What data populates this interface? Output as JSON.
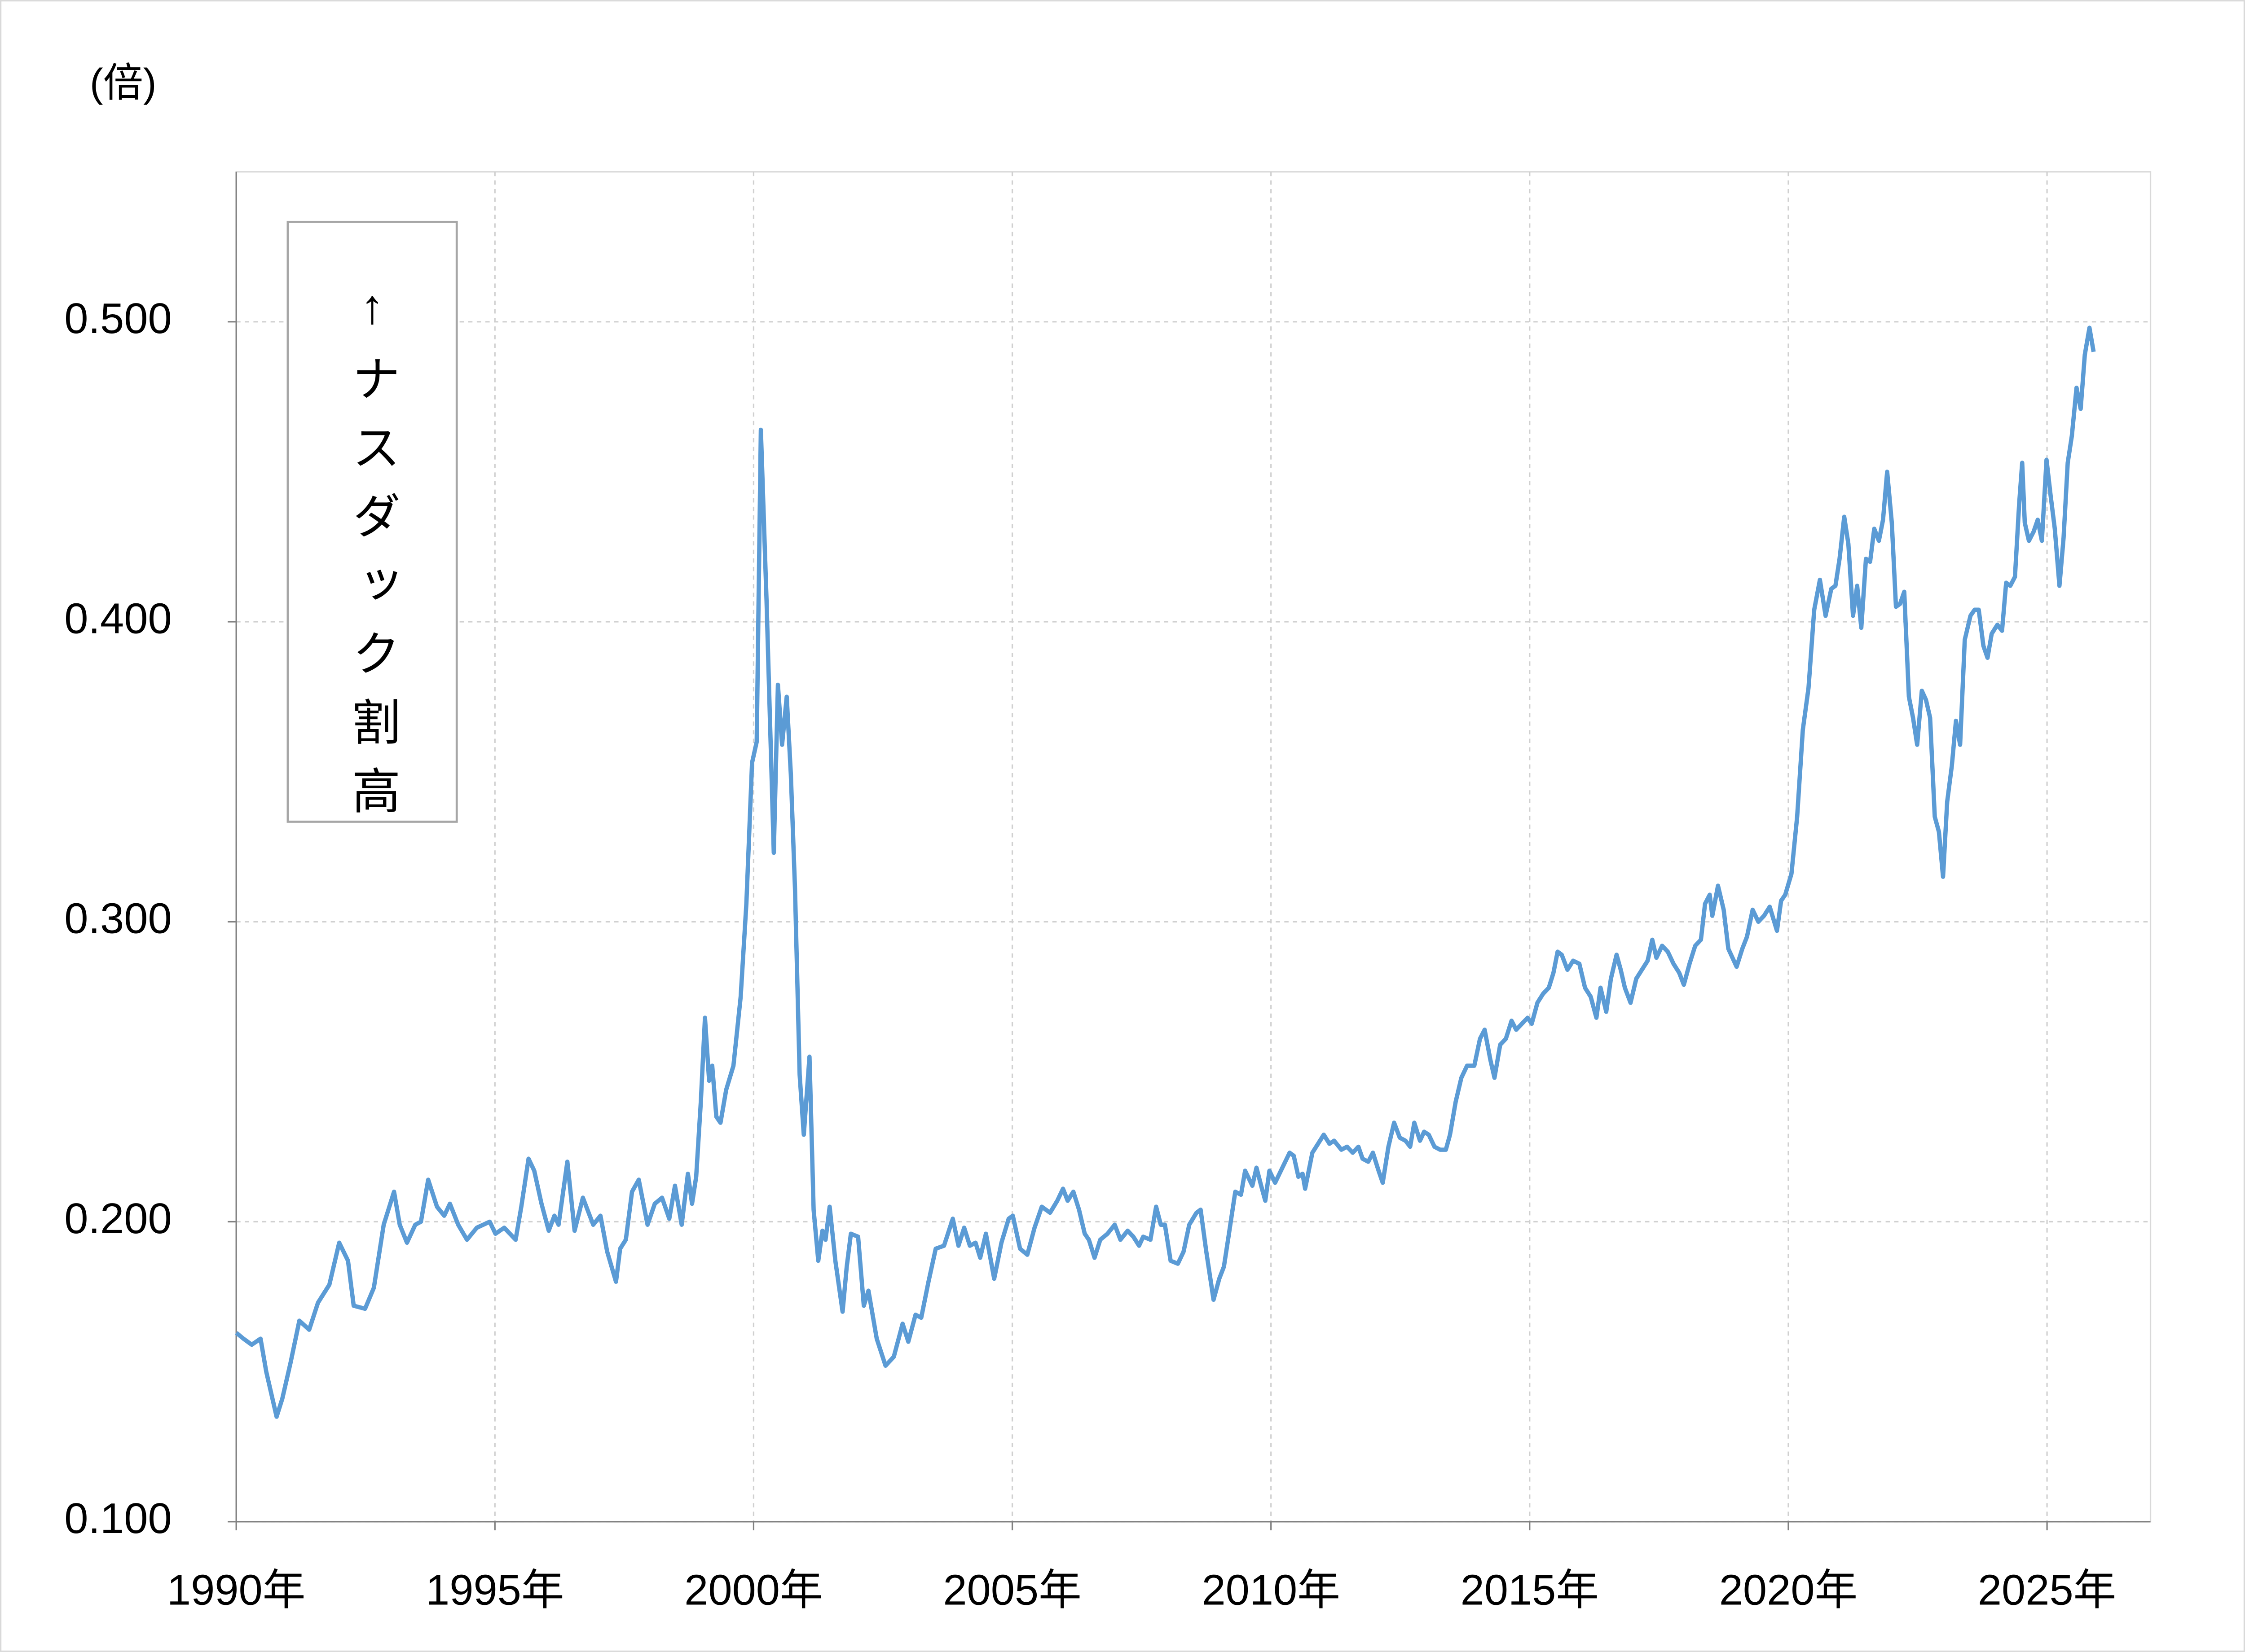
{
  "chart_data": {
    "type": "line",
    "y_axis_label": "(倍)",
    "annotation": "↑ナスダック割高",
    "x": [
      1990.0,
      1990.14,
      1990.3,
      1990.47,
      1990.58,
      1990.78,
      1990.89,
      1991.05,
      1991.22,
      1991.41,
      1991.58,
      1991.8,
      1991.99,
      1992.16,
      1992.27,
      1992.49,
      1992.66,
      1992.85,
      1993.05,
      1993.16,
      1993.3,
      1993.46,
      1993.57,
      1993.71,
      1993.88,
      1994.02,
      1994.13,
      1994.29,
      1994.46,
      1994.65,
      1994.9,
      1995.01,
      1995.18,
      1995.4,
      1995.51,
      1995.65,
      1995.76,
      1995.9,
      1996.04,
      1996.15,
      1996.23,
      1996.4,
      1996.54,
      1996.7,
      1996.9,
      1997.04,
      1997.17,
      1997.34,
      1997.42,
      1997.53,
      1997.65,
      1997.78,
      1997.95,
      1998.09,
      1998.23,
      1998.37,
      1998.48,
      1998.61,
      1998.73,
      1998.81,
      1998.89,
      1998.98,
      1999.06,
      1999.14,
      1999.2,
      1999.28,
      1999.36,
      1999.47,
      1999.61,
      1999.75,
      1999.86,
      1999.97,
      2000.06,
      2000.14,
      2000.25,
      2000.39,
      2000.47,
      2000.55,
      2000.64,
      2000.72,
      2000.8,
      2000.89,
      2000.97,
      2001.08,
      2001.16,
      2001.25,
      2001.33,
      2001.39,
      2001.47,
      2001.58,
      2001.72,
      2001.8,
      2001.88,
      2002.02,
      2002.13,
      2002.22,
      2002.38,
      2002.55,
      2002.71,
      2002.88,
      2002.99,
      2003.13,
      2003.24,
      2003.38,
      2003.52,
      2003.68,
      2003.85,
      2003.96,
      2004.07,
      2004.18,
      2004.29,
      2004.38,
      2004.49,
      2004.65,
      2004.79,
      2004.93,
      2005.01,
      2005.15,
      2005.29,
      2005.43,
      2005.57,
      2005.73,
      2005.87,
      2005.98,
      2006.07,
      2006.18,
      2006.29,
      2006.4,
      2006.48,
      2006.59,
      2006.7,
      2006.84,
      2006.98,
      2007.09,
      2007.23,
      2007.34,
      2007.45,
      2007.53,
      2007.67,
      2007.78,
      2007.87,
      2007.95,
      2008.06,
      2008.2,
      2008.31,
      2008.42,
      2008.56,
      2008.64,
      2008.75,
      2008.89,
      2009.0,
      2009.09,
      2009.17,
      2009.31,
      2009.42,
      2009.5,
      2009.64,
      2009.72,
      2009.81,
      2009.89,
      2009.97,
      2010.08,
      2010.22,
      2010.36,
      2010.44,
      2010.53,
      2010.61,
      2010.66,
      2010.8,
      2010.91,
      2011.02,
      2011.13,
      2011.22,
      2011.36,
      2011.47,
      2011.58,
      2011.69,
      2011.77,
      2011.88,
      2011.97,
      2012.08,
      2012.16,
      2012.27,
      2012.38,
      2012.49,
      2012.6,
      2012.69,
      2012.77,
      2012.88,
      2012.96,
      2013.05,
      2013.16,
      2013.27,
      2013.38,
      2013.46,
      2013.57,
      2013.68,
      2013.79,
      2013.93,
      2014.04,
      2014.13,
      2014.24,
      2014.32,
      2014.43,
      2014.54,
      2014.65,
      2014.74,
      2014.85,
      2014.96,
      2015.04,
      2015.15,
      2015.26,
      2015.37,
      2015.46,
      2015.54,
      2015.62,
      2015.73,
      2015.84,
      2015.96,
      2016.07,
      2016.18,
      2016.29,
      2016.37,
      2016.48,
      2016.57,
      2016.68,
      2016.76,
      2016.84,
      2016.95,
      2017.06,
      2017.17,
      2017.28,
      2017.37,
      2017.45,
      2017.56,
      2017.67,
      2017.78,
      2017.89,
      2017.98,
      2018.09,
      2018.2,
      2018.31,
      2018.39,
      2018.48,
      2018.53,
      2018.64,
      2018.75,
      2018.84,
      2019.0,
      2019.11,
      2019.2,
      2019.31,
      2019.42,
      2019.53,
      2019.64,
      2019.78,
      2019.86,
      2019.94,
      2020.06,
      2020.17,
      2020.28,
      2020.39,
      2020.5,
      2020.61,
      2020.72,
      2020.83,
      2020.91,
      2020.99,
      2021.08,
      2021.16,
      2021.25,
      2021.33,
      2021.41,
      2021.5,
      2021.58,
      2021.66,
      2021.75,
      2021.83,
      2021.91,
      2022.0,
      2022.08,
      2022.16,
      2022.24,
      2022.33,
      2022.41,
      2022.49,
      2022.58,
      2022.66,
      2022.74,
      2022.83,
      2022.91,
      2022.99,
      2023.07,
      2023.16,
      2023.24,
      2023.32,
      2023.41,
      2023.52,
      2023.6,
      2023.68,
      2023.77,
      2023.85,
      2023.93,
      2024.04,
      2024.13,
      2024.21,
      2024.29,
      2024.38,
      2024.46,
      2024.52,
      2024.57,
      2024.65,
      2024.74,
      2024.82,
      2024.9,
      2024.99,
      2025.07,
      2025.15,
      2025.24,
      2025.32,
      2025.4,
      2025.48,
      2025.57,
      2025.65,
      2025.73,
      2025.82,
      2025.9
    ],
    "series": [
      {
        "color": "#5b9bd5",
        "values": [
          0.163,
          0.161,
          0.159,
          0.161,
          0.15,
          0.135,
          0.141,
          0.153,
          0.167,
          0.164,
          0.173,
          0.179,
          0.193,
          0.187,
          0.172,
          0.171,
          0.178,
          0.199,
          0.21,
          0.199,
          0.193,
          0.199,
          0.2,
          0.214,
          0.205,
          0.202,
          0.206,
          0.199,
          0.194,
          0.198,
          0.2,
          0.196,
          0.198,
          0.194,
          0.205,
          0.221,
          0.217,
          0.206,
          0.197,
          0.202,
          0.199,
          0.22,
          0.197,
          0.208,
          0.199,
          0.202,
          0.19,
          0.18,
          0.191,
          0.194,
          0.21,
          0.214,
          0.199,
          0.206,
          0.208,
          0.201,
          0.212,
          0.199,
          0.216,
          0.206,
          0.215,
          0.24,
          0.268,
          0.247,
          0.252,
          0.235,
          0.233,
          0.244,
          0.252,
          0.275,
          0.306,
          0.353,
          0.36,
          0.464,
          0.407,
          0.323,
          0.379,
          0.359,
          0.375,
          0.349,
          0.311,
          0.249,
          0.229,
          0.255,
          0.204,
          0.187,
          0.197,
          0.194,
          0.205,
          0.187,
          0.17,
          0.185,
          0.196,
          0.195,
          0.172,
          0.177,
          0.161,
          0.152,
          0.155,
          0.166,
          0.16,
          0.169,
          0.168,
          0.18,
          0.191,
          0.192,
          0.201,
          0.192,
          0.198,
          0.192,
          0.193,
          0.188,
          0.196,
          0.181,
          0.193,
          0.201,
          0.202,
          0.191,
          0.189,
          0.198,
          0.205,
          0.203,
          0.207,
          0.211,
          0.207,
          0.21,
          0.204,
          0.196,
          0.194,
          0.188,
          0.194,
          0.196,
          0.199,
          0.194,
          0.197,
          0.195,
          0.192,
          0.195,
          0.194,
          0.205,
          0.199,
          0.199,
          0.187,
          0.186,
          0.19,
          0.199,
          0.203,
          0.204,
          0.19,
          0.174,
          0.181,
          0.185,
          0.194,
          0.21,
          0.209,
          0.217,
          0.212,
          0.218,
          0.212,
          0.207,
          0.217,
          0.213,
          0.218,
          0.223,
          0.222,
          0.215,
          0.216,
          0.211,
          0.223,
          0.226,
          0.229,
          0.226,
          0.227,
          0.224,
          0.225,
          0.223,
          0.225,
          0.221,
          0.22,
          0.223,
          0.217,
          0.213,
          0.225,
          0.233,
          0.228,
          0.227,
          0.225,
          0.233,
          0.227,
          0.23,
          0.229,
          0.225,
          0.224,
          0.224,
          0.229,
          0.24,
          0.248,
          0.252,
          0.252,
          0.261,
          0.264,
          0.254,
          0.248,
          0.259,
          0.261,
          0.267,
          0.264,
          0.266,
          0.268,
          0.266,
          0.273,
          0.276,
          0.278,
          0.283,
          0.29,
          0.289,
          0.284,
          0.287,
          0.286,
          0.278,
          0.275,
          0.268,
          0.278,
          0.27,
          0.281,
          0.289,
          0.284,
          0.278,
          0.273,
          0.281,
          0.284,
          0.287,
          0.294,
          0.288,
          0.292,
          0.29,
          0.286,
          0.283,
          0.279,
          0.286,
          0.292,
          0.294,
          0.306,
          0.309,
          0.302,
          0.312,
          0.304,
          0.291,
          0.285,
          0.291,
          0.295,
          0.304,
          0.3,
          0.302,
          0.305,
          0.297,
          0.307,
          0.309,
          0.316,
          0.335,
          0.364,
          0.378,
          0.404,
          0.414,
          0.402,
          0.411,
          0.412,
          0.421,
          0.435,
          0.426,
          0.402,
          0.412,
          0.398,
          0.421,
          0.42,
          0.431,
          0.427,
          0.434,
          0.45,
          0.433,
          0.405,
          0.406,
          0.41,
          0.375,
          0.368,
          0.359,
          0.377,
          0.374,
          0.368,
          0.335,
          0.33,
          0.315,
          0.34,
          0.352,
          0.367,
          0.359,
          0.394,
          0.402,
          0.404,
          0.404,
          0.392,
          0.388,
          0.396,
          0.399,
          0.397,
          0.413,
          0.412,
          0.415,
          0.439,
          0.453,
          0.433,
          0.427,
          0.43,
          0.434,
          0.427,
          0.454,
          0.442,
          0.431,
          0.412,
          0.428,
          0.453,
          0.462,
          0.478,
          0.471,
          0.489,
          0.498,
          0.49
        ]
      }
    ],
    "xlim": [
      1990,
      2027
    ],
    "ylim": [
      0.1,
      0.55
    ],
    "xticks": [
      {
        "value": 1990,
        "label": "1990年"
      },
      {
        "value": 1995,
        "label": "1995年"
      },
      {
        "value": 2000,
        "label": "2000年"
      },
      {
        "value": 2005,
        "label": "2005年"
      },
      {
        "value": 2010,
        "label": "2010年"
      },
      {
        "value": 2015,
        "label": "2015年"
      },
      {
        "value": 2020,
        "label": "2020年"
      },
      {
        "value": 2025,
        "label": "2025年"
      }
    ],
    "yticks": [
      {
        "value": 0.1,
        "label": "0.100"
      },
      {
        "value": 0.2,
        "label": "0.200"
      },
      {
        "value": 0.3,
        "label": "0.300"
      },
      {
        "value": 0.4,
        "label": "0.400"
      },
      {
        "value": 0.5,
        "label": "0.500"
      }
    ],
    "grid": true
  }
}
